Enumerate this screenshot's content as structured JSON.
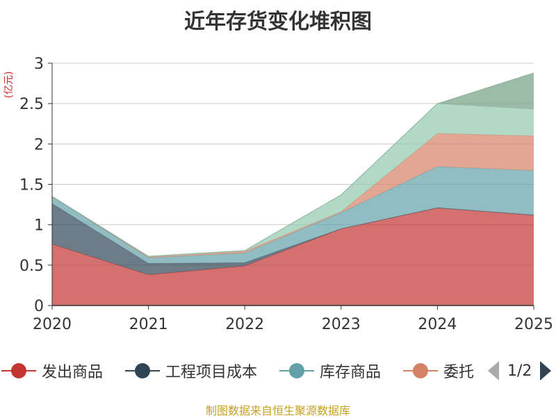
{
  "title": "近年存货变化堆积图",
  "unit_label": "(亿元)",
  "source": "制图数据来自恒生聚源数据库",
  "legend_pager": "1/2",
  "chart_data": {
    "type": "area",
    "stacked": true,
    "x": [
      "2020",
      "2021",
      "2022",
      "2023",
      "2024",
      "2025"
    ],
    "ylim": [
      0,
      3
    ],
    "yticks": [
      "0",
      "0.5",
      "1",
      "1.5",
      "2",
      "2.5",
      "3"
    ],
    "grid": true,
    "legend_position": "bottom",
    "series": [
      {
        "name": "发出商品",
        "color": "#c23531",
        "values": [
          0.76,
          0.38,
          0.49,
          0.95,
          1.21,
          1.12
        ]
      },
      {
        "name": "工程项目成本",
        "color": "#2f4554",
        "values": [
          0.5,
          0.14,
          0.04,
          0.0,
          0.0,
          0.0
        ]
      },
      {
        "name": "库存商品",
        "color": "#61a0a8",
        "values": [
          0.09,
          0.07,
          0.12,
          0.2,
          0.51,
          0.55
        ]
      },
      {
        "name": "委托",
        "color": "#d48265",
        "values": [
          0.0,
          0.01,
          0.02,
          0.01,
          0.41,
          0.43
        ]
      },
      {
        "name": "",
        "color": "#91c7ae",
        "values": [
          0.0,
          0.01,
          0.01,
          0.21,
          0.37,
          0.33
        ]
      },
      {
        "name": "",
        "color": "#749f83",
        "values": [
          0.0,
          0.0,
          0.0,
          0.0,
          0.0,
          0.45
        ]
      }
    ]
  }
}
